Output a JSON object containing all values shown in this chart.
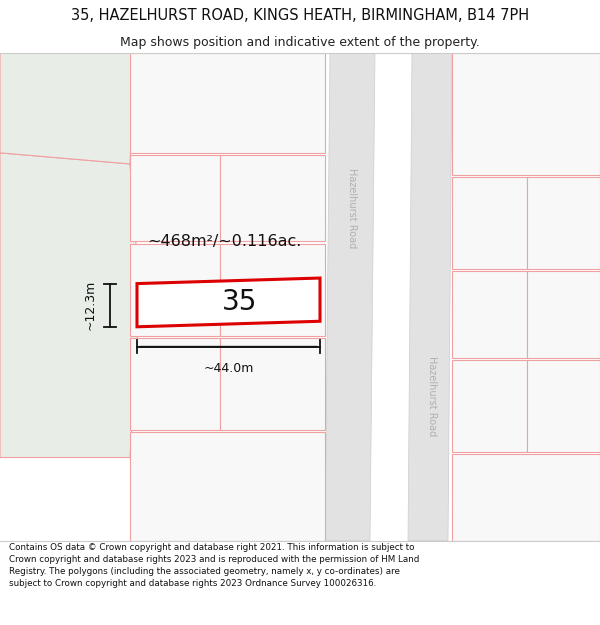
{
  "title_line1": "35, HAZELHURST ROAD, KINGS HEATH, BIRMINGHAM, B14 7PH",
  "title_line2": "Map shows position and indicative extent of the property.",
  "footer_text": "Contains OS data © Crown copyright and database right 2021. This information is subject to Crown copyright and database rights 2023 and is reproduced with the permission of HM Land Registry. The polygons (including the associated geometry, namely x, y co-ordinates) are subject to Crown copyright and database rights 2023 Ordnance Survey 100026316.",
  "bg_color": "#ffffff",
  "map_bg": "#f5f5f5",
  "green_color": "#e8ede8",
  "road_fill": "#e2e2e2",
  "plot_border_color": "#dd0000",
  "plot_fill": "#ffffff",
  "parcel_line_color": "#f0a0a0",
  "parcel_fill": "#f8f8f8",
  "road_label": "Hazelhurst Road",
  "property_number": "35",
  "area_label": "~468m²/~0.116ac.",
  "width_label": "~44.0m",
  "height_label": "~12.3m",
  "title_fontsize": 10.5,
  "subtitle_fontsize": 9.0,
  "footer_fontsize": 6.3,
  "label_fontsize": 11.5,
  "dim_fontsize": 9.0,
  "prop_num_fontsize": 20
}
